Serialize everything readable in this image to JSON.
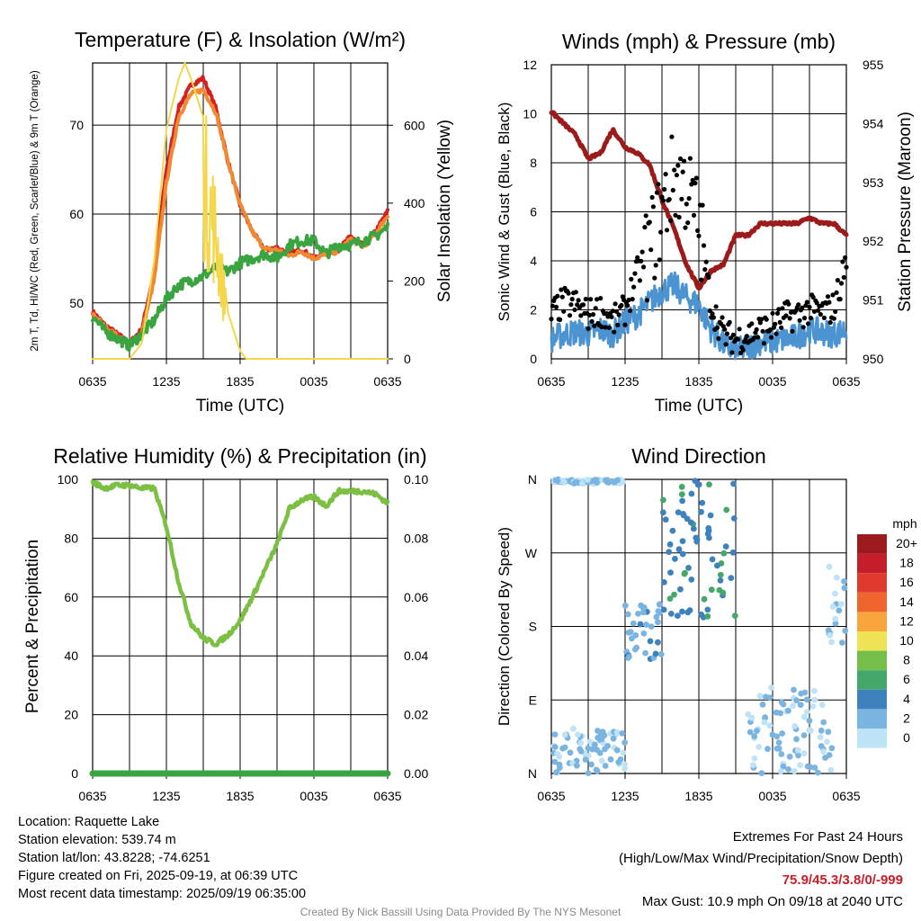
{
  "colors": {
    "red": "#d42020",
    "orange": "#f08a30",
    "green": "#3aa540",
    "yellow": "#f3d64a",
    "maroon": "#9c1a1a",
    "blue": "#4b94d1",
    "black": "#000000",
    "rh": "#7cc043",
    "precip": "#3aa540"
  },
  "chart_data": [
    {
      "type": "line",
      "title": "Temperature (F) & Insolation (W/m²)",
      "xlabel": "Time (UTC)",
      "ylabel": "2m T, Td, HI/WC (Red, Green, Scarlet/Blue) & 9m T (Orange)",
      "y2label": "Solar Insolation (Yellow)",
      "x_ticks": [
        "0635",
        "1235",
        "1835",
        "0035",
        "0635"
      ],
      "x_range_hours": [
        0,
        24
      ],
      "ylim": [
        43.7,
        77
      ],
      "y_ticks": [
        50,
        60,
        70
      ],
      "y2lim": [
        0,
        760
      ],
      "y2_ticks": [
        0,
        200,
        400,
        600
      ],
      "series": [
        {
          "name": "2m T",
          "color": "red",
          "axis": "left",
          "x": [
            0,
            1,
            2,
            3,
            4,
            5,
            6,
            7,
            8,
            9,
            10,
            11,
            12,
            13,
            14,
            15,
            16,
            17,
            18,
            19,
            20,
            21,
            22,
            23,
            24
          ],
          "values": [
            49,
            47.5,
            46.5,
            45.5,
            47,
            53.5,
            65,
            72,
            74.5,
            75.3,
            72,
            66,
            61,
            58,
            56,
            56.2,
            55.5,
            56,
            55,
            55.8,
            56,
            57.5,
            56.5,
            58,
            60.3
          ]
        },
        {
          "name": "9m T",
          "color": "orange",
          "axis": "left",
          "x": [
            0,
            1,
            2,
            3,
            4,
            5,
            6,
            7,
            8,
            9,
            10,
            11,
            12,
            13,
            14,
            15,
            16,
            17,
            18,
            19,
            20,
            21,
            22,
            23,
            24
          ],
          "values": [
            48.8,
            47.3,
            46.3,
            45.3,
            46.6,
            52.5,
            63.5,
            71,
            73.5,
            74,
            71.5,
            66,
            61,
            58,
            56,
            56,
            55.3,
            55.8,
            55,
            55.5,
            55.8,
            57.2,
            56.3,
            57.8,
            59.8
          ]
        },
        {
          "name": "2m Td",
          "color": "green",
          "axis": "left",
          "x": [
            0,
            1,
            2,
            3,
            4,
            5,
            6,
            7,
            8,
            9,
            10,
            11,
            12,
            13,
            14,
            15,
            16,
            17,
            18,
            19,
            20,
            21,
            22,
            23,
            24
          ],
          "values": [
            48.5,
            46.8,
            46,
            45.2,
            46.5,
            48,
            50.5,
            52,
            52.5,
            53,
            54,
            53.5,
            54.5,
            55,
            55.5,
            55,
            56.5,
            57,
            57,
            55.5,
            56.5,
            56.5,
            57,
            57.5,
            58.5
          ]
        },
        {
          "name": "Solar",
          "color": "yellow",
          "axis": "right",
          "x": [
            0,
            3,
            4,
            5,
            6,
            7,
            7.5,
            8,
            9,
            10,
            11,
            12,
            12.5,
            13,
            14,
            15,
            24
          ],
          "values": [
            0,
            0,
            40,
            250,
            590,
            720,
            760,
            720,
            620,
            430,
            120,
            20,
            0,
            0,
            0,
            0,
            0
          ]
        }
      ]
    },
    {
      "type": "line",
      "title": "Winds (mph) & Pressure (mb)",
      "xlabel": "Time (UTC)",
      "ylabel": "Sonic Wind & Gust (Blue, Black)",
      "y2label": "Station Pressure (Maroon)",
      "x_ticks": [
        "0635",
        "1235",
        "1835",
        "0035",
        "0635"
      ],
      "x_range_hours": [
        0,
        24
      ],
      "ylim": [
        0,
        12
      ],
      "y_ticks": [
        0,
        2,
        4,
        6,
        8,
        10,
        12
      ],
      "y2lim": [
        950,
        955
      ],
      "y2_ticks": [
        950,
        951,
        952,
        953,
        954,
        955
      ],
      "series": [
        {
          "name": "Pressure",
          "color": "maroon",
          "axis": "right",
          "x": [
            0,
            1,
            2,
            3,
            4,
            5,
            6,
            7,
            8,
            9,
            10,
            11,
            12,
            13,
            14,
            15,
            16,
            17,
            18,
            19,
            20,
            21,
            22,
            23,
            24
          ],
          "values": [
            954.2,
            954,
            953.8,
            953.4,
            953.5,
            953.9,
            953.6,
            953.5,
            953.3,
            952.7,
            952.2,
            951.6,
            951.2,
            951.5,
            951.6,
            952.1,
            952.1,
            952.3,
            952.3,
            952.3,
            952.3,
            952.4,
            952.3,
            952.3,
            952.1
          ]
        },
        {
          "name": "Wind",
          "color": "blue",
          "axis": "left",
          "x": [
            0,
            1,
            2,
            3,
            4,
            5,
            6,
            7,
            8,
            9,
            10,
            11,
            12,
            13,
            14,
            15,
            16,
            17,
            18,
            19,
            20,
            21,
            22,
            23,
            24
          ],
          "values": [
            0.8,
            1,
            1.1,
            1,
            1.2,
            1,
            1.5,
            1.8,
            2.3,
            2.8,
            3,
            2.5,
            2.2,
            1.2,
            0.6,
            0.3,
            0.5,
            0.7,
            0.7,
            0.8,
            0.9,
            1.2,
            1.1,
            1,
            1.2
          ]
        },
        {
          "name": "Gust",
          "color": "black",
          "axis": "left",
          "x": [
            0,
            1,
            2,
            3,
            4,
            5,
            6,
            7,
            8,
            9,
            10,
            11,
            12,
            13,
            14,
            15,
            16,
            17,
            18,
            19,
            20,
            21,
            22,
            23,
            24
          ],
          "values": [
            1.8,
            2.3,
            2.2,
            1.8,
            2,
            1.5,
            2,
            3.5,
            4.5,
            6,
            7.5,
            7,
            5.5,
            2.2,
            1,
            0.8,
            1,
            1.2,
            1.3,
            1.7,
            1.8,
            2,
            1.9,
            2.1,
            4
          ]
        }
      ]
    },
    {
      "type": "line",
      "title": "Relative Humidity (%) & Precipitation (in)",
      "xlabel": "",
      "ylabel": "Percent & Precipitation",
      "x_ticks": [
        "0635",
        "1235",
        "1835",
        "0035",
        "0635"
      ],
      "x_range_hours": [
        0,
        24
      ],
      "ylim": [
        0,
        100
      ],
      "y_ticks": [
        0,
        20,
        40,
        60,
        80,
        100
      ],
      "y2lim": [
        0,
        0.1
      ],
      "y2_ticks": [
        "0.00",
        "0.02",
        "0.04",
        "0.06",
        "0.08",
        "0.10"
      ],
      "series": [
        {
          "name": "RH",
          "color": "rh",
          "axis": "left",
          "x": [
            0,
            1,
            2,
            3,
            4,
            5,
            6,
            7,
            8,
            9,
            10,
            11,
            12,
            13,
            14,
            15,
            16,
            17,
            18,
            19,
            20,
            21,
            22,
            23,
            24
          ],
          "values": [
            99,
            97,
            98,
            98,
            97,
            97,
            84,
            65,
            51,
            46,
            44,
            47,
            52,
            60,
            69,
            78,
            90,
            93,
            94,
            91,
            96,
            96,
            96,
            95,
            92
          ]
        },
        {
          "name": "Precipitation",
          "color": "precip",
          "axis": "right",
          "x": [
            0,
            24
          ],
          "values": [
            0,
            0
          ]
        }
      ]
    },
    {
      "type": "scatter",
      "title": "Wind Direction",
      "ylabel": "Direction (Colored By Speed)",
      "x_ticks": [
        "0635",
        "1235",
        "1835",
        "0035",
        "0635"
      ],
      "x_range_hours": [
        0,
        24
      ],
      "y_ticks": [
        "N",
        "E",
        "S",
        "W",
        "N"
      ],
      "y_degrees": [
        0,
        90,
        180,
        270,
        360
      ],
      "legend": {
        "title": "mph",
        "labels": [
          "20+",
          "18",
          "16",
          "14",
          "12",
          "10",
          "8",
          "6",
          "4",
          "2",
          "0"
        ],
        "colors": [
          "#9b1b1f",
          "#c41e2a",
          "#e03a2e",
          "#f0642e",
          "#f9a43c",
          "#ede354",
          "#74bf4a",
          "#45a86a",
          "#3d82bd",
          "#7ab4e0",
          "#bfe3f6"
        ]
      },
      "clusters": [
        {
          "x_from": 0,
          "x_to": 6,
          "deg_from": 0,
          "deg_to": 55,
          "speed": 1
        },
        {
          "x_from": 0,
          "x_to": 6,
          "deg_from": 355,
          "deg_to": 360,
          "speed": 1
        },
        {
          "x_from": 6,
          "x_to": 9,
          "deg_from": 140,
          "deg_to": 210,
          "speed": 2
        },
        {
          "x_from": 9,
          "x_to": 15,
          "deg_from": 190,
          "deg_to": 360,
          "speed": 4
        },
        {
          "x_from": 16,
          "x_to": 23,
          "deg_from": 0,
          "deg_to": 110,
          "speed": 1
        },
        {
          "x_from": 22.5,
          "x_to": 24,
          "deg_from": 160,
          "deg_to": 260,
          "speed": 1
        }
      ]
    }
  ],
  "footer": {
    "location": "Location: Raquette Lake",
    "elevation": "Station elevation: 539.74 m",
    "latlon": "Station lat/lon: 43.8228; -74.6251",
    "created": "Figure created on Fri, 2025-09-19, at 06:39 UTC",
    "recent": "Most recent data timestamp: 2025/09/19 06:35:00",
    "extremes_title": "Extremes For Past 24 Hours",
    "extremes_sub": "(High/Low/Max Wind/Precipitation/Snow Depth)",
    "extremes_values": "75.9/45.3/3.8/0/-999",
    "max_gust": "Max Gust: 10.9 mph On 09/18 at 2040 UTC",
    "credit": "Created By Nick Bassill Using Data Provided By The NYS Mesonet"
  }
}
